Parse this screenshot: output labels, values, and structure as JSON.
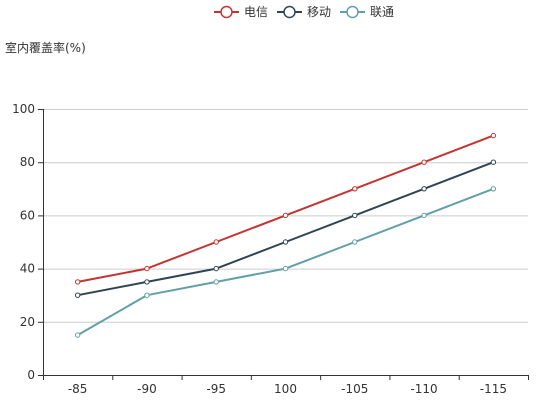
{
  "chart_data": {
    "type": "line",
    "ylabel": "室内覆盖率(%)",
    "categories": [
      "-85",
      "-90",
      "-95",
      "100",
      "-105",
      "-110",
      "-115"
    ],
    "ylim": [
      0,
      100
    ],
    "yticks": [
      "0",
      "20",
      "40",
      "60",
      "80",
      "100"
    ],
    "grid": true,
    "legend_position": "top-center",
    "series": [
      {
        "name": "电信",
        "color": "#c23531",
        "values": [
          35,
          40,
          50,
          60,
          70,
          80,
          90
        ]
      },
      {
        "name": "移动",
        "color": "#2f4554",
        "values": [
          30,
          35,
          40,
          50,
          60,
          70,
          80
        ]
      },
      {
        "name": "联通",
        "color": "#61a0a8",
        "values": [
          15,
          30,
          35,
          40,
          50,
          60,
          70
        ]
      }
    ]
  }
}
